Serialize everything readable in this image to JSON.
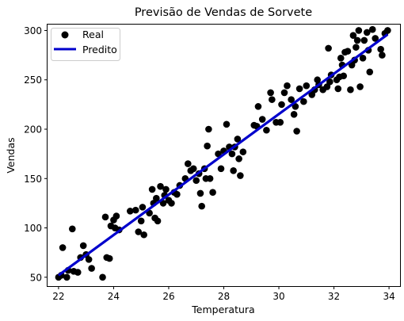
{
  "chart_data": {
    "type": "scatter",
    "title": "Previsão de Vendas de Sorvete",
    "xlabel": "Temperatura",
    "ylabel": "Vendas",
    "xlim": [
      21.6,
      34.4
    ],
    "ylim": [
      41,
      306
    ],
    "xticks": [
      22,
      24,
      26,
      28,
      30,
      32,
      34
    ],
    "yticks": [
      50,
      100,
      150,
      200,
      250,
      300
    ],
    "grid": false,
    "legend_position": "top-left",
    "colors": {
      "real": "#000000",
      "predito": "#0000cc"
    },
    "series": [
      {
        "name": "Real",
        "kind": "scatter",
        "points": [
          [
            22.0,
            50
          ],
          [
            22.1,
            52
          ],
          [
            22.15,
            80
          ],
          [
            22.3,
            50
          ],
          [
            22.35,
            57
          ],
          [
            22.5,
            99
          ],
          [
            22.55,
            56
          ],
          [
            22.7,
            55
          ],
          [
            22.8,
            70
          ],
          [
            22.9,
            82
          ],
          [
            23.0,
            73
          ],
          [
            23.1,
            68
          ],
          [
            23.2,
            59
          ],
          [
            23.6,
            50
          ],
          [
            23.7,
            111
          ],
          [
            23.75,
            70
          ],
          [
            23.85,
            69
          ],
          [
            23.9,
            102
          ],
          [
            24.0,
            108
          ],
          [
            24.05,
            100
          ],
          [
            24.1,
            112
          ],
          [
            24.2,
            98
          ],
          [
            24.6,
            117
          ],
          [
            24.8,
            118
          ],
          [
            24.9,
            96
          ],
          [
            25.0,
            107
          ],
          [
            25.05,
            121
          ],
          [
            25.1,
            93
          ],
          [
            25.3,
            115
          ],
          [
            25.4,
            139
          ],
          [
            25.45,
            125
          ],
          [
            25.5,
            110
          ],
          [
            25.55,
            130
          ],
          [
            25.6,
            107
          ],
          [
            25.7,
            142
          ],
          [
            25.8,
            125
          ],
          [
            25.85,
            133
          ],
          [
            25.9,
            139
          ],
          [
            26.0,
            128
          ],
          [
            26.1,
            125
          ],
          [
            26.2,
            136
          ],
          [
            26.3,
            134
          ],
          [
            26.4,
            143
          ],
          [
            26.6,
            150
          ],
          [
            26.7,
            165
          ],
          [
            26.8,
            158
          ],
          [
            26.9,
            160
          ],
          [
            27.0,
            148
          ],
          [
            27.1,
            155
          ],
          [
            27.15,
            135
          ],
          [
            27.2,
            122
          ],
          [
            27.3,
            160
          ],
          [
            27.35,
            150
          ],
          [
            27.4,
            183
          ],
          [
            27.45,
            200
          ],
          [
            27.5,
            150
          ],
          [
            27.6,
            136
          ],
          [
            27.8,
            175
          ],
          [
            27.9,
            160
          ],
          [
            28.0,
            178
          ],
          [
            28.1,
            205
          ],
          [
            28.2,
            182
          ],
          [
            28.3,
            175
          ],
          [
            28.35,
            158
          ],
          [
            28.4,
            182
          ],
          [
            28.5,
            190
          ],
          [
            28.55,
            170
          ],
          [
            28.6,
            153
          ],
          [
            28.7,
            177
          ],
          [
            29.1,
            204
          ],
          [
            29.2,
            203
          ],
          [
            29.25,
            223
          ],
          [
            29.4,
            210
          ],
          [
            29.55,
            199
          ],
          [
            29.7,
            237
          ],
          [
            29.75,
            230
          ],
          [
            29.9,
            207
          ],
          [
            30.05,
            207
          ],
          [
            30.1,
            225
          ],
          [
            30.2,
            237
          ],
          [
            30.3,
            244
          ],
          [
            30.45,
            230
          ],
          [
            30.55,
            215
          ],
          [
            30.6,
            223
          ],
          [
            30.65,
            198
          ],
          [
            30.75,
            241
          ],
          [
            30.9,
            228
          ],
          [
            31.0,
            244
          ],
          [
            31.2,
            235
          ],
          [
            31.3,
            240
          ],
          [
            31.4,
            250
          ],
          [
            31.45,
            245
          ],
          [
            31.6,
            240
          ],
          [
            31.75,
            243
          ],
          [
            31.8,
            282
          ],
          [
            31.85,
            248
          ],
          [
            31.9,
            255
          ],
          [
            32.1,
            250
          ],
          [
            32.15,
            241
          ],
          [
            32.2,
            253
          ],
          [
            32.25,
            272
          ],
          [
            32.3,
            265
          ],
          [
            32.35,
            254
          ],
          [
            32.4,
            278
          ],
          [
            32.5,
            279
          ],
          [
            32.6,
            240
          ],
          [
            32.65,
            265
          ],
          [
            32.7,
            295
          ],
          [
            32.75,
            270
          ],
          [
            32.8,
            283
          ],
          [
            32.85,
            290
          ],
          [
            32.9,
            300
          ],
          [
            32.95,
            243
          ],
          [
            33.05,
            272
          ],
          [
            33.1,
            290
          ],
          [
            33.2,
            298
          ],
          [
            33.25,
            280
          ],
          [
            33.3,
            258
          ],
          [
            33.4,
            301
          ],
          [
            33.5,
            292
          ],
          [
            33.7,
            281
          ],
          [
            33.75,
            275
          ],
          [
            33.85,
            297
          ],
          [
            33.95,
            300
          ]
        ]
      },
      {
        "name": "Predito",
        "kind": "line",
        "points": [
          [
            22.0,
            52
          ],
          [
            33.95,
            296
          ]
        ]
      }
    ]
  }
}
